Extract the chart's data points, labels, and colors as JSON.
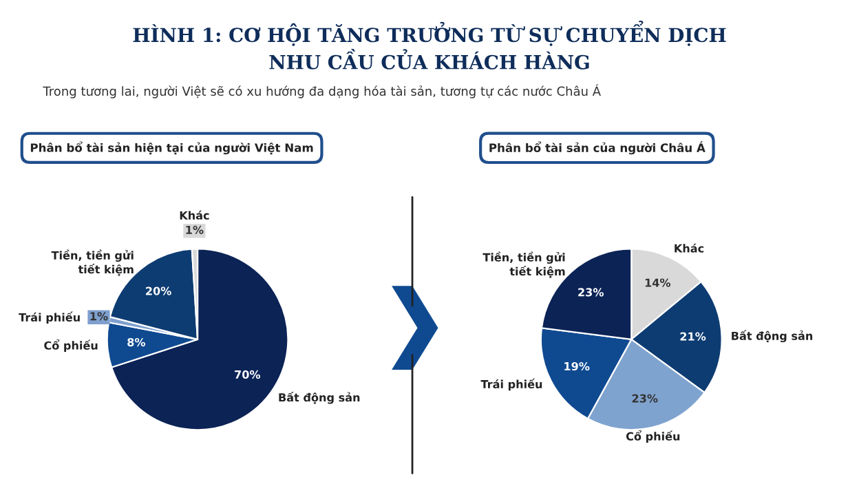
{
  "chart_data": [
    {
      "type": "pie",
      "title": "Phân bổ tài sản hiện tại của người Việt Nam",
      "annotations": [
        "HÌNH 1: CƠ HỘI TĂNG TRƯỞNG TỪ SỰ CHUYỂN DỊCH\nNHU CẦU CỦA KHÁCH HÀNG",
        "Trong tương lai, người Việt sẽ có xu hướng đa dạng hóa tài sản, tương tự các nước Châu Á"
      ],
      "categories": [
        "Bất động sản",
        "Cổ phiếu",
        "Trái phiếu",
        "Tiền, tiền gửi\ntiết kiệm",
        "Khác"
      ],
      "values": [
        70,
        8,
        1,
        20,
        1
      ],
      "value_labels": [
        "70%",
        "8%",
        "1%",
        "20%",
        "1%"
      ],
      "colors": [
        "#0c2356",
        "#0f4a91",
        "#7fa0cf",
        "#0d3c72",
        "#d9d9d9"
      ]
    },
    {
      "type": "pie",
      "title": "Phân bổ tài sản của người Châu Á",
      "categories": [
        "Khác",
        "Bất động sản",
        "Cổ phiếu",
        "Trái phiếu",
        "Tiền, tiền gửi\ntiết kiệm"
      ],
      "values": [
        14,
        21,
        23,
        19,
        23
      ],
      "value_labels": [
        "14%",
        "21%",
        "23%",
        "19%",
        "23%"
      ],
      "colors": [
        "#d9d9d9",
        "#0d3c72",
        "#7fa3cf",
        "#0f4a91",
        "#0c2356"
      ]
    }
  ]
}
